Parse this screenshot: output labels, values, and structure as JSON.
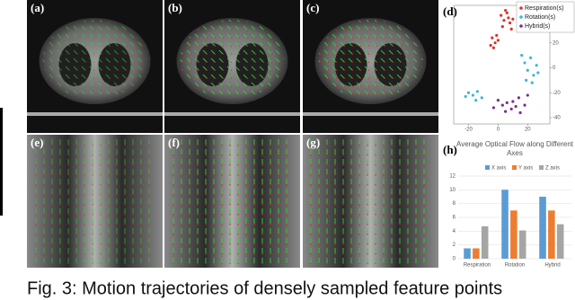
{
  "panels": [
    "(a)",
    "(b)",
    "(c)",
    "(e)",
    "(f)",
    "(g)"
  ],
  "caption": "Fig. 3: Motion trajectories of densely sampled feature points",
  "chart_data": [
    {
      "type": "scatter",
      "panel_label": "(d)",
      "xlim": [
        -30,
        35
      ],
      "ylim": [
        -45,
        50
      ],
      "xticks": [
        -20,
        0,
        20
      ],
      "yticks": [
        -40,
        -20,
        0,
        20,
        40
      ],
      "legend": "top-right",
      "series": [
        {
          "name": "Respiration(s)",
          "color": "#e0302a",
          "x": [
            2,
            4,
            6,
            8,
            3,
            7,
            9,
            5,
            10,
            -4,
            -2,
            -3,
            -1,
            -5,
            0
          ],
          "y": [
            42,
            38,
            44,
            36,
            33,
            40,
            31,
            46,
            39,
            24,
            20,
            16,
            26,
            18,
            22
          ]
        },
        {
          "name": "Rotation(s)",
          "color": "#3bb6d9",
          "x": [
            16,
            18,
            20,
            22,
            24,
            26,
            19,
            23,
            27,
            -20,
            -17,
            -14,
            -11,
            -22,
            -15
          ],
          "y": [
            10,
            4,
            -2,
            8,
            -6,
            2,
            -10,
            -12,
            -4,
            -20,
            -22,
            -19,
            -24,
            -23,
            -26
          ]
        },
        {
          "name": "Hybrid(s)",
          "color": "#7b2d8e",
          "x": [
            0,
            3,
            6,
            9,
            12,
            15,
            18,
            5,
            10,
            14,
            -3,
            20
          ],
          "y": [
            -26,
            -30,
            -28,
            -33,
            -31,
            -36,
            -30,
            -35,
            -27,
            -24,
            -32,
            -22
          ]
        }
      ]
    },
    {
      "type": "bar",
      "panel_label": "(h)",
      "title": "Average Optical Flow along Different Axes",
      "categories": [
        "Respiration",
        "Rotation",
        "Hybrid"
      ],
      "ylim": [
        0,
        12
      ],
      "yticks": [
        0,
        2,
        4,
        6,
        8,
        10,
        12
      ],
      "grid": true,
      "legend": "top",
      "series": [
        {
          "name": "X axis",
          "color": "#5b9bd5",
          "values": [
            1.5,
            10,
            9
          ]
        },
        {
          "name": "Y axis",
          "color": "#ed7d31",
          "values": [
            1.5,
            7,
            7
          ]
        },
        {
          "name": "Z axis",
          "color": "#a5a5a5",
          "values": [
            4.7,
            4.1,
            5
          ]
        }
      ]
    }
  ]
}
